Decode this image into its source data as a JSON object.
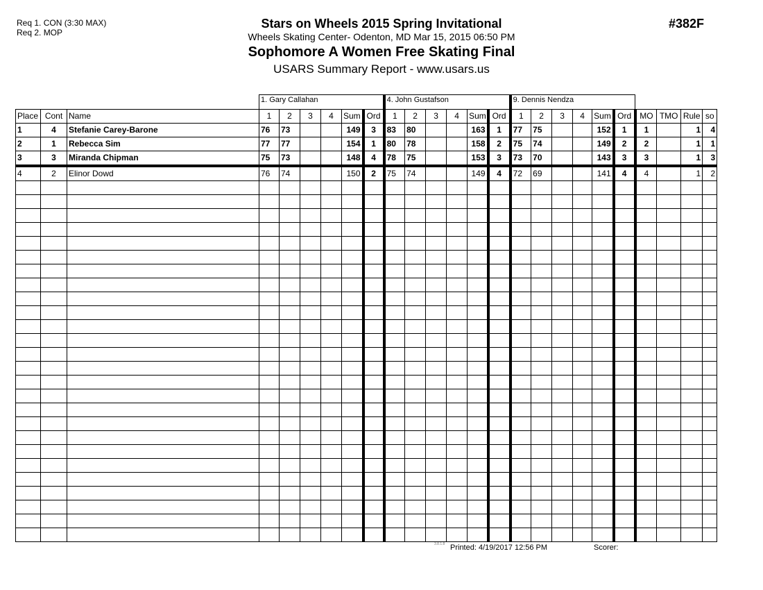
{
  "requirements": [
    "Req 1.  CON (3:30 MAX)",
    "Req 2.  MOP"
  ],
  "header": {
    "event": "Stars on Wheels 2015 Spring Invitational",
    "venue": "Wheels Skating Center- Odenton, MD  Mar 15, 2015  06:50 PM",
    "category": "Sophomore A Women Free Skating Final",
    "report": "USARS Summary Report - www.usars.us",
    "code": "#382F"
  },
  "judges": [
    "1.  Gary Callahan",
    "4.  John Gustafson",
    "9.  Dennis Nendza"
  ],
  "columns": {
    "place": "Place",
    "cont": "Cont",
    "name": "Name",
    "judge_cols": [
      "1",
      "2",
      "3",
      "4",
      "Sum",
      "Ord"
    ],
    "mo": "MO",
    "tmo": "TMO",
    "rule": "Rule",
    "so": "so"
  },
  "rows": [
    {
      "place": "1",
      "cont": "4",
      "name": "Stefanie Carey-Barone",
      "bold": true,
      "scores": [
        [
          "76",
          "73",
          "",
          "",
          "149",
          "3"
        ],
        [
          "83",
          "80",
          "",
          "",
          "163",
          "1"
        ],
        [
          "77",
          "75",
          "",
          "",
          "152",
          "1"
        ]
      ],
      "mo": "1",
      "tmo": "",
      "rule": "1",
      "so": "4"
    },
    {
      "place": "2",
      "cont": "1",
      "name": "Rebecca Sim",
      "bold": true,
      "scores": [
        [
          "77",
          "77",
          "",
          "",
          "154",
          "1"
        ],
        [
          "80",
          "78",
          "",
          "",
          "158",
          "2"
        ],
        [
          "75",
          "74",
          "",
          "",
          "149",
          "2"
        ]
      ],
      "mo": "2",
      "tmo": "",
      "rule": "1",
      "so": "1"
    },
    {
      "place": "3",
      "cont": "3",
      "name": "Miranda Chipman",
      "bold": true,
      "scores": [
        [
          "75",
          "73",
          "",
          "",
          "148",
          "4"
        ],
        [
          "78",
          "75",
          "",
          "",
          "153",
          "3"
        ],
        [
          "73",
          "70",
          "",
          "",
          "143",
          "3"
        ]
      ],
      "mo": "3",
      "tmo": "",
      "rule": "1",
      "so": "3"
    },
    {
      "place": "4",
      "cont": "2",
      "name": "Elinor Dowd",
      "bold": false,
      "scores": [
        [
          "76",
          "74",
          "",
          "",
          "150",
          "2"
        ],
        [
          "75",
          "74",
          "",
          "",
          "149",
          "4"
        ],
        [
          "72",
          "69",
          "",
          "",
          "141",
          "4"
        ]
      ],
      "mo": "4",
      "tmo": "",
      "rule": "1",
      "so": "2"
    }
  ],
  "footer": {
    "version": "3.8.1.8",
    "printed": "Printed:  4/19/2017  12:56 PM",
    "scorer": "Scorer:"
  }
}
